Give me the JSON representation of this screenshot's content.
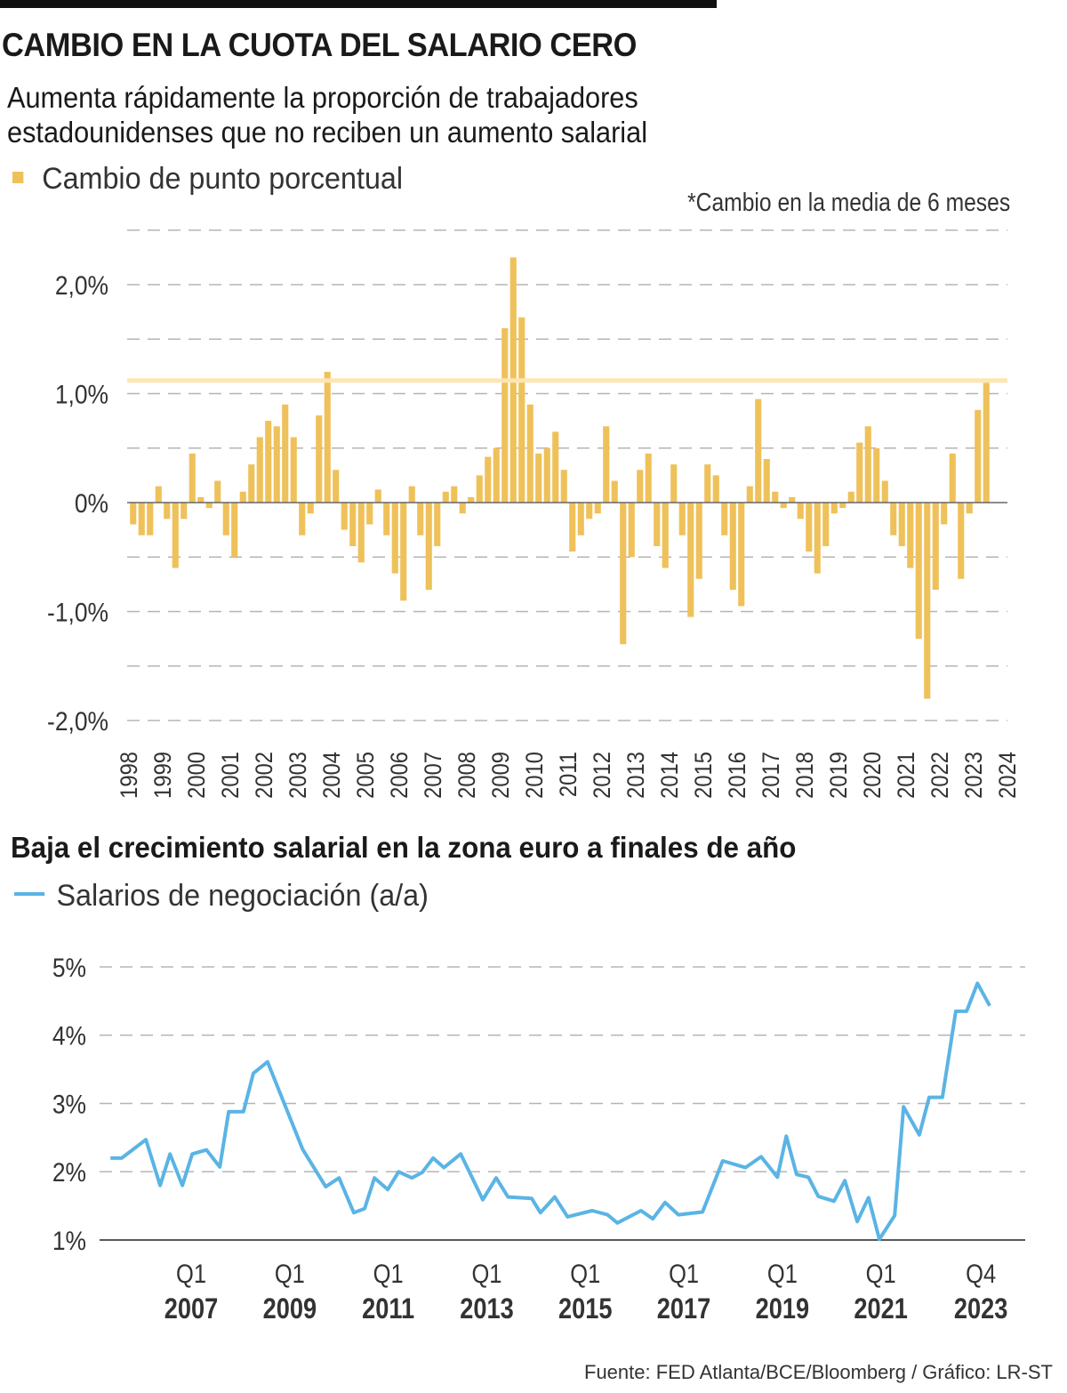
{
  "header": {
    "title": "CAMBIO EN LA CUOTA DEL SALARIO CERO",
    "subtitle": "Aumenta rápidamente la proporción de trabajadores estadounidenses que no reciben un aumento salarial"
  },
  "footer": {
    "source": "Fuente: FED Atlanta/BCE/Bloomberg / Gráfico: LR-ST"
  },
  "chart_data": [
    {
      "type": "bar",
      "legend": "Cambio de punto porcentual",
      "note": "*Cambio en la media de 6 meses",
      "color": "#efc15a",
      "reference_line": {
        "value": 1.12,
        "color": "#fde6b2"
      },
      "frequency": "quarterly",
      "start": 1998.0,
      "xlim": [
        1998,
        2024
      ],
      "ylim": [
        -2.0,
        2.5
      ],
      "grid": true,
      "y_ticks": [
        {
          "value": 2.0,
          "label": "2,0%"
        },
        {
          "value": 1.0,
          "label": "1,0%"
        },
        {
          "value": 0,
          "label": "0%"
        },
        {
          "value": -1.0,
          "label": "-1,0%"
        },
        {
          "value": -2.0,
          "label": "-2,0%"
        }
      ],
      "x_ticks": [
        "1998",
        "1999",
        "2000",
        "2001",
        "2002",
        "2003",
        "2004",
        "2005",
        "2006",
        "2007",
        "2008",
        "2009",
        "2010",
        "2011",
        "2012",
        "2013",
        "2014",
        "2015",
        "2016",
        "2017",
        "2018",
        "2019",
        "2020",
        "2021",
        "2022",
        "2023",
        "2024"
      ],
      "values": [
        -0.2,
        -0.3,
        -0.3,
        0.15,
        -0.15,
        -0.6,
        -0.15,
        0.45,
        0.05,
        -0.05,
        0.2,
        -0.3,
        -0.5,
        0.1,
        0.35,
        0.6,
        0.75,
        0.7,
        0.9,
        0.6,
        -0.3,
        -0.1,
        0.8,
        1.2,
        0.3,
        -0.25,
        -0.4,
        -0.55,
        -0.2,
        0.12,
        -0.3,
        -0.65,
        -0.9,
        0.15,
        -0.3,
        -0.8,
        -0.4,
        0.1,
        0.15,
        -0.1,
        0.05,
        0.25,
        0.42,
        0.5,
        1.6,
        2.25,
        1.7,
        0.9,
        0.45,
        0.5,
        0.65,
        0.3,
        -0.45,
        -0.3,
        -0.15,
        -0.1,
        0.7,
        0.2,
        -1.3,
        -0.5,
        0.3,
        0.45,
        -0.4,
        -0.6,
        0.35,
        -0.3,
        -1.05,
        -0.7,
        0.35,
        0.25,
        -0.3,
        -0.8,
        -0.95,
        0.15,
        0.95,
        0.4,
        0.1,
        -0.05,
        0.05,
        -0.15,
        -0.45,
        -0.65,
        -0.4,
        -0.1,
        -0.05,
        0.1,
        0.55,
        0.7,
        0.5,
        0.2,
        -0.3,
        -0.4,
        -0.6,
        -1.25,
        -1.8,
        -0.8,
        -0.2,
        0.45,
        -0.7,
        -0.1,
        0.85,
        1.1
      ]
    },
    {
      "type": "line",
      "title": "Baja el crecimiento salarial en la zona euro a finales de año",
      "legend": "Salarios de negociación (a/a)",
      "color": "#5ab4e5",
      "xlim": [
        2005.14,
        2023.93
      ],
      "ylim": [
        1,
        5
      ],
      "grid": true,
      "y_ticks": [
        {
          "value": 5,
          "label": "5%"
        },
        {
          "value": 4,
          "label": "4%"
        },
        {
          "value": 3,
          "label": "3%"
        },
        {
          "value": 2,
          "label": "2%"
        },
        {
          "value": 1,
          "label": "1%"
        }
      ],
      "x_ticks": [
        {
          "at": 2007.0,
          "quarter": "Q1",
          "year": "2007"
        },
        {
          "at": 2009.0,
          "quarter": "Q1",
          "year": "2009"
        },
        {
          "at": 2011.0,
          "quarter": "Q1",
          "year": "2011"
        },
        {
          "at": 2013.0,
          "quarter": "Q1",
          "year": "2013"
        },
        {
          "at": 2015.0,
          "quarter": "Q1",
          "year": "2015"
        },
        {
          "at": 2017.0,
          "quarter": "Q1",
          "year": "2017"
        },
        {
          "at": 2019.0,
          "quarter": "Q1",
          "year": "2019"
        },
        {
          "at": 2021.0,
          "quarter": "Q1",
          "year": "2021"
        },
        {
          "at": 2023.03,
          "quarter": "Q4",
          "year": "2023"
        }
      ],
      "x": [
        2005.36,
        2005.59,
        2006.08,
        2006.37,
        2006.57,
        2006.82,
        2007.02,
        2007.31,
        2007.58,
        2007.76,
        2008.06,
        2008.26,
        2008.55,
        2009.26,
        2009.73,
        2010.0,
        2010.3,
        2010.52,
        2010.72,
        2010.99,
        2011.21,
        2011.48,
        2011.69,
        2011.91,
        2012.13,
        2012.47,
        2012.92,
        2013.19,
        2013.43,
        2013.91,
        2014.09,
        2014.38,
        2014.64,
        2015.14,
        2015.45,
        2015.65,
        2016.13,
        2016.37,
        2016.62,
        2016.89,
        2017.38,
        2017.79,
        2018.25,
        2018.57,
        2018.9,
        2019.08,
        2019.29,
        2019.53,
        2019.73,
        2020.05,
        2020.27,
        2020.52,
        2020.75,
        2020.97,
        2021.28,
        2021.46,
        2021.78,
        2021.98,
        2022.25,
        2022.52,
        2022.74,
        2022.96,
        2023.21
      ],
      "y": [
        2.2,
        2.2,
        2.47,
        1.8,
        2.26,
        1.8,
        2.26,
        2.32,
        2.07,
        2.88,
        2.88,
        3.44,
        3.61,
        2.33,
        1.78,
        1.91,
        1.4,
        1.46,
        1.91,
        1.74,
        2.0,
        1.91,
        1.99,
        2.2,
        2.06,
        2.26,
        1.59,
        1.91,
        1.63,
        1.61,
        1.4,
        1.63,
        1.34,
        1.43,
        1.37,
        1.25,
        1.43,
        1.31,
        1.55,
        1.37,
        1.41,
        2.16,
        2.06,
        2.22,
        1.92,
        2.52,
        1.96,
        1.92,
        1.64,
        1.57,
        1.87,
        1.27,
        1.62,
        1.01,
        1.36,
        2.95,
        2.54,
        3.09,
        3.09,
        4.35,
        4.35,
        4.76,
        4.43
      ]
    }
  ]
}
